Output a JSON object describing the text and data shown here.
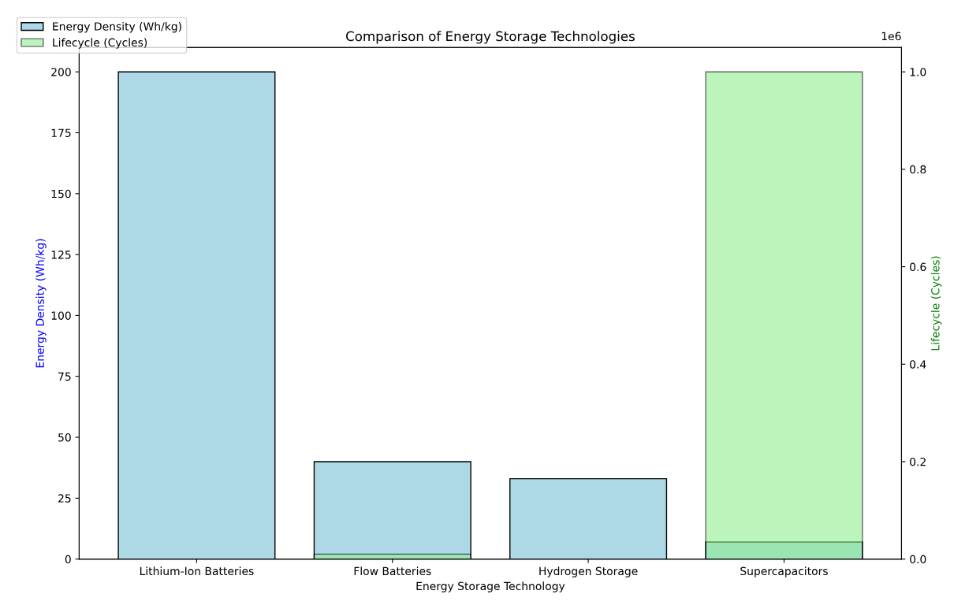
{
  "chart_data": {
    "type": "bar",
    "title": "Comparison of Energy Storage Technologies",
    "xlabel": "Energy Storage Technology",
    "ylabel": "Energy Density (Wh/kg)",
    "y2label": "Lifecycle (Cycles)",
    "categories": [
      "Lithium-Ion Batteries",
      "Flow Batteries",
      "Hydrogen Storage",
      "Supercapacitors"
    ],
    "series": [
      {
        "name": "Energy Density (Wh/kg)",
        "color": "#add8e6",
        "values": [
          200,
          40,
          33,
          7
        ]
      },
      {
        "name": "Lifecycle (Cycles)",
        "color": "#90ee90",
        "values": [
          null,
          0.01,
          null,
          1.0
        ],
        "axis": "y2"
      }
    ],
    "ylim": [
      0,
      210
    ],
    "yticks": [
      0,
      25,
      50,
      75,
      100,
      125,
      150,
      175,
      200
    ],
    "y2lim": [
      0,
      1.05
    ],
    "y2ticks": [
      {
        "value": 0,
        "label": "0.0"
      },
      0.2,
      0.4,
      0.6,
      0.8,
      {
        "value": 1,
        "label": "1.0"
      }
    ],
    "annotations": [
      "1e6"
    ],
    "legend": "top left",
    "grid": false
  }
}
